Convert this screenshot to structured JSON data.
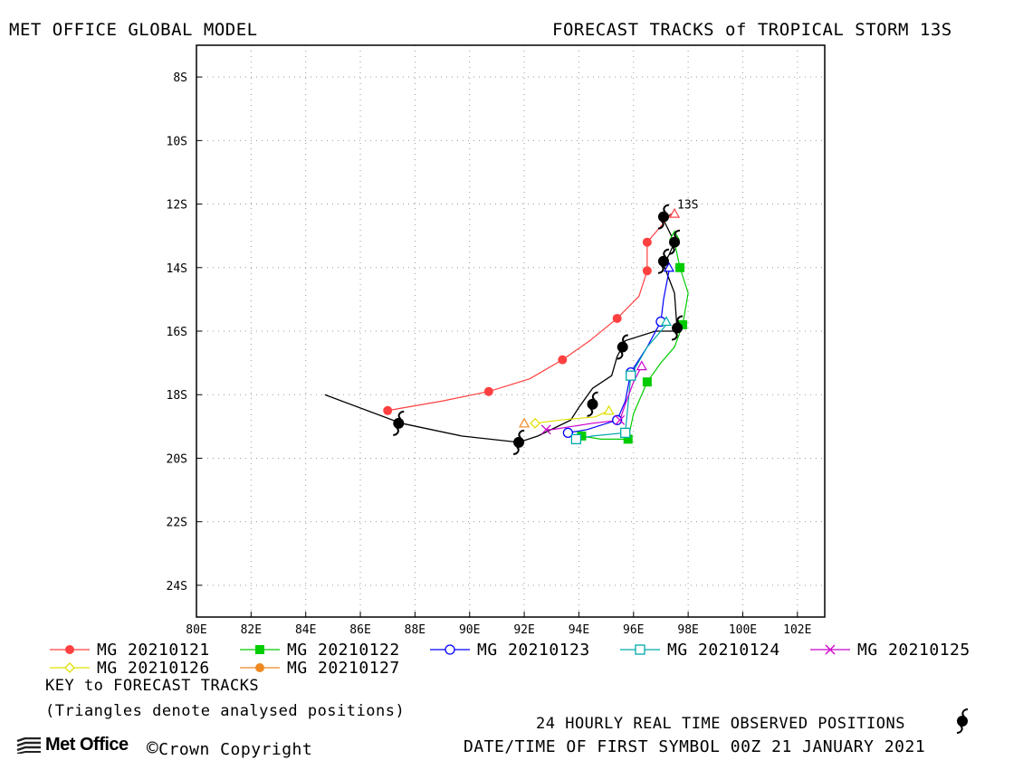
{
  "header": {
    "left": "MET OFFICE GLOBAL MODEL",
    "right": "FORECAST TRACKS of TROPICAL STORM 13S"
  },
  "map": {
    "lon_range": [
      80,
      103
    ],
    "lat_range_south": [
      7,
      25
    ],
    "lon_ticks": [
      "80E",
      "82E",
      "84E",
      "86E",
      "88E",
      "90E",
      "92E",
      "94E",
      "96E",
      "98E",
      "100E",
      "102E"
    ],
    "lat_ticks": [
      "8S",
      "10S",
      "12S",
      "14S",
      "16S",
      "18S",
      "20S",
      "22S",
      "24S"
    ],
    "grid": "dotted",
    "storm_label": "13S"
  },
  "chart_data": {
    "type": "line",
    "x_unit": "longitude E",
    "y_unit": "latitude S",
    "series": [
      {
        "name": "MG 20210121",
        "color": "#ff4040",
        "marker": "filled-circle",
        "points": [
          [
            97.4,
            12.3
          ],
          [
            97.2,
            12.5
          ],
          [
            96.5,
            13.2
          ],
          [
            96.5,
            14.1
          ],
          [
            96.2,
            14.9
          ],
          [
            95.4,
            15.6
          ],
          [
            94.4,
            16.3
          ],
          [
            93.4,
            16.9
          ],
          [
            92.2,
            17.5
          ],
          [
            90.7,
            17.9
          ],
          [
            89.0,
            18.2
          ],
          [
            87.0,
            18.5
          ]
        ],
        "markers": [
          [
            96.5,
            13.2
          ],
          [
            96.5,
            14.1
          ],
          [
            95.4,
            15.6
          ],
          [
            93.4,
            16.9
          ],
          [
            90.7,
            17.9
          ],
          [
            87.0,
            18.5
          ]
        ]
      },
      {
        "name": "MG 20210122",
        "color": "#00cc00",
        "marker": "filled-square",
        "points": [
          [
            97.5,
            13.2
          ],
          [
            97.7,
            14.0
          ],
          [
            98.0,
            14.8
          ],
          [
            97.8,
            15.8
          ],
          [
            97.5,
            16.5
          ],
          [
            97.0,
            17.0
          ],
          [
            96.5,
            17.6
          ],
          [
            96.0,
            18.6
          ],
          [
            95.8,
            19.4
          ],
          [
            94.8,
            19.4
          ],
          [
            94.1,
            19.3
          ]
        ],
        "markers": [
          [
            97.7,
            14.0
          ],
          [
            97.8,
            15.8
          ],
          [
            96.5,
            17.6
          ],
          [
            95.8,
            19.4
          ],
          [
            94.1,
            19.3
          ]
        ]
      },
      {
        "name": "MG 20210123",
        "color": "#0000ff",
        "marker": "open-circle",
        "points": [
          [
            97.3,
            14.1
          ],
          [
            97.1,
            15.0
          ],
          [
            97.0,
            15.7
          ],
          [
            96.5,
            16.5
          ],
          [
            95.9,
            17.3
          ],
          [
            95.7,
            18.2
          ],
          [
            95.4,
            18.8
          ],
          [
            94.3,
            19.1
          ],
          [
            93.6,
            19.2
          ]
        ],
        "markers": [
          [
            97.0,
            15.7
          ],
          [
            95.9,
            17.3
          ],
          [
            95.4,
            18.8
          ],
          [
            93.6,
            19.2
          ]
        ]
      },
      {
        "name": "MG 20210124",
        "color": "#00aaaa",
        "marker": "open-square",
        "points": [
          [
            97.2,
            15.8
          ],
          [
            96.5,
            16.5
          ],
          [
            95.9,
            17.4
          ],
          [
            95.8,
            18.3
          ],
          [
            95.7,
            19.2
          ],
          [
            94.5,
            19.3
          ],
          [
            93.9,
            19.4
          ]
        ],
        "markers": [
          [
            95.9,
            17.4
          ],
          [
            95.7,
            19.2
          ],
          [
            93.9,
            19.4
          ]
        ]
      },
      {
        "name": "MG 20210125",
        "color": "#cc00cc",
        "marker": "x",
        "points": [
          [
            96.3,
            17.1
          ],
          [
            96.0,
            17.6
          ],
          [
            95.7,
            18.3
          ],
          [
            95.5,
            18.8
          ],
          [
            94.5,
            18.9
          ],
          [
            93.0,
            19.1
          ],
          [
            92.8,
            19.1
          ]
        ],
        "markers": [
          [
            95.5,
            18.8
          ],
          [
            92.8,
            19.1
          ]
        ]
      },
      {
        "name": "MG 20210126",
        "color": "#e0e000",
        "marker": "open-diamond",
        "points": [
          [
            95.1,
            18.5
          ],
          [
            94.6,
            18.7
          ],
          [
            93.3,
            18.8
          ],
          [
            92.4,
            18.9
          ]
        ],
        "markers": [
          [
            92.4,
            18.9
          ]
        ]
      },
      {
        "name": "MG 20210127",
        "color": "#ee8822",
        "marker": "filled-circle",
        "points": [],
        "markers": []
      }
    ],
    "observed_track": {
      "color": "#000000",
      "points": [
        [
          97.4,
          12.3
        ],
        [
          97.1,
          12.5
        ],
        [
          97.5,
          13.2
        ],
        [
          97.3,
          13.6
        ],
        [
          97.1,
          13.9
        ],
        [
          97.5,
          14.8
        ],
        [
          97.6,
          16.0
        ],
        [
          96.8,
          16.0
        ],
        [
          95.7,
          16.3
        ],
        [
          95.4,
          16.8
        ],
        [
          95.2,
          17.4
        ],
        [
          94.5,
          17.8
        ],
        [
          94.0,
          18.4
        ],
        [
          93.7,
          18.8
        ],
        [
          92.5,
          19.3
        ],
        [
          91.8,
          19.5
        ],
        [
          89.7,
          19.3
        ],
        [
          87.5,
          18.9
        ],
        [
          84.7,
          18.0
        ]
      ],
      "symbols": [
        [
          97.1,
          12.4
        ],
        [
          97.5,
          13.2
        ],
        [
          97.1,
          13.8
        ],
        [
          97.6,
          15.9
        ],
        [
          95.6,
          16.5
        ],
        [
          94.5,
          18.3
        ],
        [
          91.8,
          19.5
        ],
        [
          87.4,
          18.9
        ]
      ]
    },
    "analysed_positions": [
      {
        "series": "MG 20210121",
        "lon": 97.5,
        "lat": 12.3
      },
      {
        "series": "MG 20210122",
        "lon": 97.5,
        "lat": 13.0
      },
      {
        "series": "MG 20210123",
        "lon": 97.3,
        "lat": 14.0
      },
      {
        "series": "MG 20210124",
        "lon": 97.2,
        "lat": 15.7
      },
      {
        "series": "MG 20210125",
        "lon": 96.3,
        "lat": 17.1
      },
      {
        "series": "MG 20210126",
        "lon": 95.1,
        "lat": 18.5
      },
      {
        "series": "MG 20210127",
        "lon": 92.0,
        "lat": 18.9
      }
    ]
  },
  "legend": {
    "items": [
      {
        "label": "MG 20210121",
        "color": "#ff4040",
        "marker": "filled-circle"
      },
      {
        "label": "MG 20210122",
        "color": "#00cc00",
        "marker": "filled-square"
      },
      {
        "label": "MG 20210123",
        "color": "#0000ff",
        "marker": "open-circle"
      },
      {
        "label": "MG 20210124",
        "color": "#00aaaa",
        "marker": "open-square"
      },
      {
        "label": "MG 20210125",
        "color": "#cc00cc",
        "marker": "x"
      },
      {
        "label": "MG 20210126",
        "color": "#e0e000",
        "marker": "open-diamond"
      },
      {
        "label": "MG 20210127",
        "color": "#ee8822",
        "marker": "filled-circle"
      }
    ],
    "key_title": "KEY to FORECAST TRACKS",
    "key_note": "(Triangles denote analysed positions)"
  },
  "footer": {
    "observed_label": "24 HOURLY REAL TIME OBSERVED POSITIONS",
    "datetime_label": "DATE/TIME OF FIRST SYMBOL 00Z 21 JANUARY 2021",
    "logo_text": "Met Office",
    "copyright": "Crown Copyright",
    "copyright_symbol": "©"
  }
}
